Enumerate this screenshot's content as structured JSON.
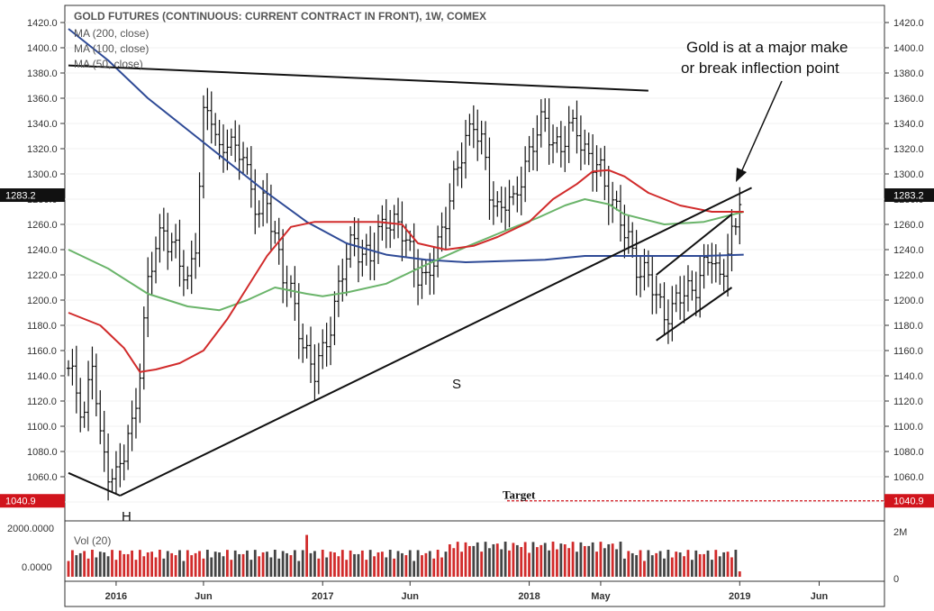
{
  "chart_data": {
    "type": "bar",
    "title": "GOLD FUTURES (CONTINUOUS: CURRENT CONTRACT IN FRONT), 1W, COMEX",
    "legend": [
      "MA (200, close)",
      "MA (100, close)",
      "MA (50, close)"
    ],
    "x_tick_labels": [
      "2016",
      "Jun",
      "2017",
      "Jun",
      "2018",
      "May",
      "2019",
      "Jun"
    ],
    "x_tick_weeks": [
      12,
      34,
      64,
      86,
      116,
      134,
      169,
      189
    ],
    "y_tick_labels": [
      "1420.0",
      "1400.0",
      "1380.0",
      "1360.0",
      "1340.0",
      "1320.0",
      "1300.0",
      "1280.0",
      "1260.0",
      "1240.0",
      "1220.0",
      "1200.0",
      "1180.0",
      "1160.0",
      "1140.0",
      "1120.0",
      "1100.0",
      "1080.0",
      "1060.0",
      "1040.0"
    ],
    "ylim": [
      1025,
      1425
    ],
    "last_price_label": "1283.2",
    "last_price": 1283.2,
    "target_label": "1040.9",
    "target_value": 1040.9,
    "target_text": "Target",
    "price_anchors": [
      [
        0,
        1140
      ],
      [
        2,
        1130
      ],
      [
        4,
        1112
      ],
      [
        6,
        1150
      ],
      [
        8,
        1085
      ],
      [
        10,
        1070
      ],
      [
        12,
        1060
      ],
      [
        14,
        1075
      ],
      [
        16,
        1100
      ],
      [
        18,
        1150
      ],
      [
        20,
        1210
      ],
      [
        22,
        1240
      ],
      [
        24,
        1260
      ],
      [
        26,
        1245
      ],
      [
        28,
        1225
      ],
      [
        30,
        1215
      ],
      [
        32,
        1250
      ],
      [
        34,
        1340
      ],
      [
        36,
        1345
      ],
      [
        38,
        1320
      ],
      [
        40,
        1330
      ],
      [
        42,
        1310
      ],
      [
        44,
        1320
      ],
      [
        46,
        1290
      ],
      [
        48,
        1265
      ],
      [
        50,
        1275
      ],
      [
        52,
        1255
      ],
      [
        54,
        1220
      ],
      [
        56,
        1200
      ],
      [
        58,
        1180
      ],
      [
        60,
        1160
      ],
      [
        62,
        1140
      ],
      [
        64,
        1155
      ],
      [
        66,
        1185
      ],
      [
        68,
        1210
      ],
      [
        70,
        1230
      ],
      [
        72,
        1250
      ],
      [
        74,
        1240
      ],
      [
        76,
        1230
      ],
      [
        78,
        1250
      ],
      [
        80,
        1270
      ],
      [
        82,
        1260
      ],
      [
        84,
        1250
      ],
      [
        86,
        1240
      ],
      [
        88,
        1225
      ],
      [
        90,
        1210
      ],
      [
        92,
        1230
      ],
      [
        94,
        1260
      ],
      [
        96,
        1280
      ],
      [
        98,
        1300
      ],
      [
        100,
        1330
      ],
      [
        102,
        1345
      ],
      [
        104,
        1320
      ],
      [
        106,
        1285
      ],
      [
        108,
        1275
      ],
      [
        110,
        1280
      ],
      [
        112,
        1270
      ],
      [
        114,
        1300
      ],
      [
        116,
        1320
      ],
      [
        118,
        1330
      ],
      [
        120,
        1340
      ],
      [
        122,
        1330
      ],
      [
        124,
        1320
      ],
      [
        126,
        1330
      ],
      [
        128,
        1340
      ],
      [
        130,
        1320
      ],
      [
        132,
        1305
      ],
      [
        134,
        1300
      ],
      [
        136,
        1290
      ],
      [
        138,
        1270
      ],
      [
        140,
        1250
      ],
      [
        142,
        1240
      ],
      [
        144,
        1225
      ],
      [
        146,
        1215
      ],
      [
        148,
        1200
      ],
      [
        150,
        1195
      ],
      [
        152,
        1190
      ],
      [
        154,
        1200
      ],
      [
        156,
        1210
      ],
      [
        158,
        1215
      ],
      [
        160,
        1220
      ],
      [
        162,
        1235
      ],
      [
        164,
        1220
      ],
      [
        166,
        1240
      ],
      [
        168,
        1250
      ],
      [
        169,
        1283
      ]
    ],
    "ma_series": [
      {
        "name": "MA (200, close)",
        "color": "#2e4a96",
        "points": [
          [
            0,
            1415
          ],
          [
            10,
            1390
          ],
          [
            20,
            1360
          ],
          [
            30,
            1335
          ],
          [
            40,
            1310
          ],
          [
            50,
            1285
          ],
          [
            60,
            1262
          ],
          [
            70,
            1245
          ],
          [
            80,
            1236
          ],
          [
            90,
            1232
          ],
          [
            100,
            1230
          ],
          [
            110,
            1231
          ],
          [
            120,
            1232
          ],
          [
            130,
            1235
          ],
          [
            140,
            1235
          ],
          [
            150,
            1235
          ],
          [
            160,
            1235
          ],
          [
            170,
            1236
          ]
        ]
      },
      {
        "name": "MA (100, close)",
        "color": "#6ab46a",
        "points": [
          [
            0,
            1240
          ],
          [
            10,
            1225
          ],
          [
            20,
            1205
          ],
          [
            30,
            1195
          ],
          [
            38,
            1192
          ],
          [
            45,
            1200
          ],
          [
            52,
            1210
          ],
          [
            60,
            1205
          ],
          [
            64,
            1203
          ],
          [
            70,
            1206
          ],
          [
            80,
            1213
          ],
          [
            88,
            1225
          ],
          [
            95,
            1235
          ],
          [
            100,
            1242
          ],
          [
            110,
            1255
          ],
          [
            118,
            1265
          ],
          [
            125,
            1275
          ],
          [
            130,
            1280
          ],
          [
            136,
            1276
          ],
          [
            140,
            1268
          ],
          [
            150,
            1260
          ],
          [
            160,
            1262
          ],
          [
            170,
            1270
          ]
        ]
      },
      {
        "name": "MA (50, close)",
        "color": "#d12b2b",
        "points": [
          [
            0,
            1190
          ],
          [
            8,
            1180
          ],
          [
            14,
            1162
          ],
          [
            18,
            1143
          ],
          [
            22,
            1145
          ],
          [
            28,
            1150
          ],
          [
            34,
            1160
          ],
          [
            40,
            1185
          ],
          [
            45,
            1210
          ],
          [
            50,
            1235
          ],
          [
            56,
            1258
          ],
          [
            62,
            1262
          ],
          [
            70,
            1262
          ],
          [
            78,
            1262
          ],
          [
            84,
            1260
          ],
          [
            88,
            1245
          ],
          [
            95,
            1240
          ],
          [
            102,
            1243
          ],
          [
            108,
            1250
          ],
          [
            116,
            1262
          ],
          [
            122,
            1280
          ],
          [
            128,
            1292
          ],
          [
            132,
            1302
          ],
          [
            136,
            1303
          ],
          [
            140,
            1298
          ],
          [
            146,
            1285
          ],
          [
            154,
            1275
          ],
          [
            162,
            1270
          ],
          [
            170,
            1270
          ]
        ]
      }
    ],
    "volume": {
      "label": "Vol (20)",
      "y_tick_labels": [
        "2000.0000",
        "0.0000"
      ],
      "right_tick_labels": [
        "2M",
        "0"
      ]
    },
    "annotations": {
      "text_line1": "Gold is at a major make",
      "text_line2": "or break inflection point",
      "head_label": "H",
      "shoulder_label": "S"
    },
    "trendlines": [
      {
        "name": "upper-resistance",
        "from": [
          0,
          1386
        ],
        "to": [
          146,
          1366
        ]
      },
      {
        "name": "rising-support",
        "from": [
          13,
          1045
        ],
        "to": [
          172,
          1289
        ]
      },
      {
        "name": "left-neck",
        "from": [
          0,
          1063
        ],
        "to": [
          13,
          1045
        ]
      },
      {
        "name": "channel-top",
        "from": [
          148,
          1220
        ],
        "to": [
          167,
          1268
        ]
      },
      {
        "name": "channel-bottom",
        "from": [
          148,
          1168
        ],
        "to": [
          167,
          1210
        ]
      }
    ],
    "colors": {
      "bars": "#111111",
      "vol_up": "#d12b2b",
      "vol_down": "#444444",
      "tag_dark": "#111111",
      "tag_red": "#d1141c",
      "target_line": "#d1141c"
    }
  }
}
